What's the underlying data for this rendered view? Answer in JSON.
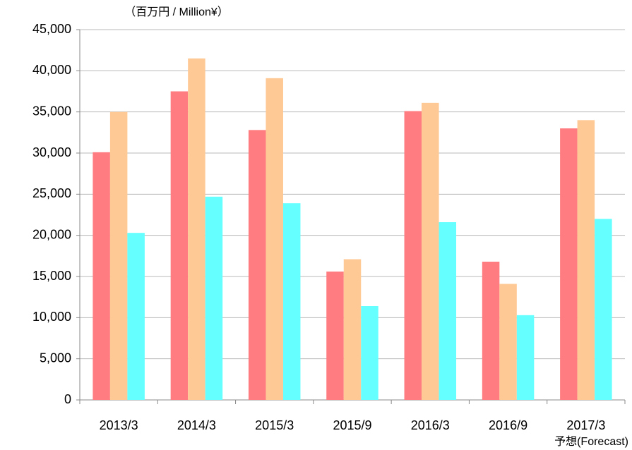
{
  "chart_data": {
    "type": "bar",
    "y_axis_label": "（百万円 / Million¥）",
    "annotation": "予想(Forecast)",
    "categories": [
      "2013/3",
      "2014/3",
      "2015/3",
      "2015/9",
      "2016/3",
      "2016/9",
      "2017/3"
    ],
    "series": [
      {
        "color": "#ff7c80",
        "values": [
          30100,
          37500,
          32800,
          15600,
          35100,
          16800,
          33000
        ]
      },
      {
        "color": "#ffc995",
        "values": [
          35000,
          41500,
          39100,
          17100,
          36100,
          14100,
          34000
        ]
      },
      {
        "color": "#66ffff",
        "values": [
          20300,
          24700,
          23900,
          11400,
          21600,
          10300,
          22000
        ]
      }
    ],
    "ylim": [
      0,
      45000
    ],
    "yticks": [
      0,
      {
        "value": 5000,
        "label": "5,000"
      },
      {
        "value": 10000,
        "label": "10,000"
      },
      {
        "value": 15000,
        "label": "15,000"
      },
      {
        "value": 20000,
        "label": "20,000"
      },
      {
        "value": 25000,
        "label": "25,000"
      },
      {
        "value": 30000,
        "label": "30,000"
      },
      {
        "value": 35000,
        "label": "35,000"
      },
      {
        "value": 40000,
        "label": "40,000"
      },
      {
        "value": 45000,
        "label": "45,000"
      }
    ],
    "grid": true
  }
}
